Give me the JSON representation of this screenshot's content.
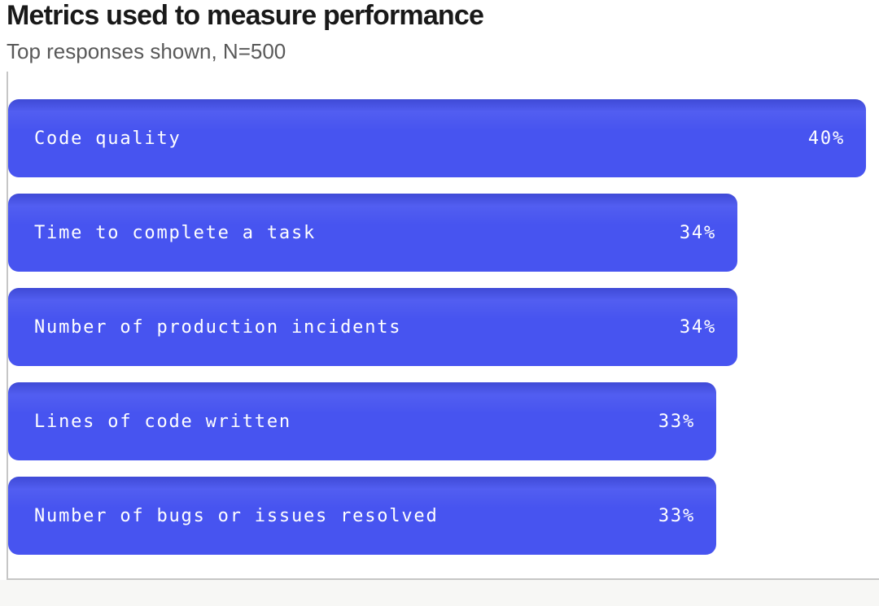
{
  "header": {
    "title": "Metrics used to measure performance",
    "subtitle": "Top responses shown, N=500"
  },
  "chart_data": {
    "type": "bar",
    "orientation": "horizontal",
    "title": "Metrics used to measure performance",
    "subtitle": "Top responses shown, N=500",
    "categories": [
      "Code quality",
      "Time to complete a task",
      "Number of production incidents",
      "Lines of code written",
      "Number of bugs or issues resolved"
    ],
    "values": [
      40,
      34,
      34,
      33,
      33
    ],
    "value_labels": [
      "40%",
      "34%",
      "34%",
      "33%",
      "33%"
    ],
    "xlabel": "",
    "ylabel": "",
    "xlim": [
      0,
      40.6
    ],
    "grid": false,
    "legend": false,
    "bar_color": "#4754F0",
    "bar_text_color": "#FFFFFF",
    "axis_color": "#C6C6C6",
    "title_color": "#191919",
    "subtitle_color": "#595959"
  }
}
